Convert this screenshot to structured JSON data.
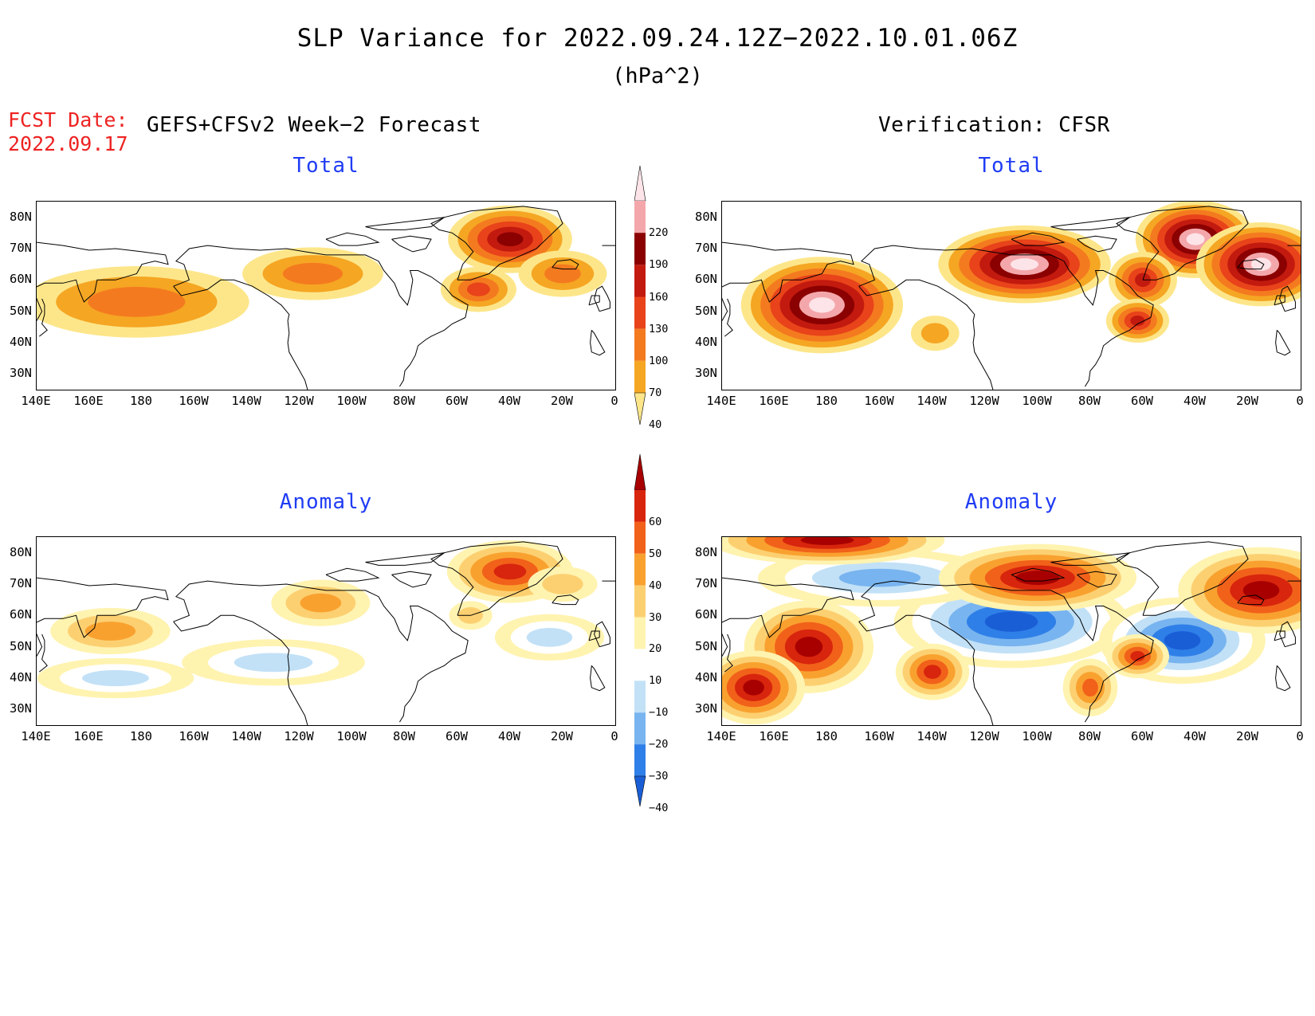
{
  "title": "SLP Variance for 2022.09.24.12Z−2022.10.01.06Z",
  "units": "(hPa^2)",
  "fcst_label": "FCST Date:",
  "fcst_date": "2022.09.17",
  "left_header": "GEFS+CFSv2 Week−2 Forecast",
  "right_header": "Verification: CFSR",
  "panels": {
    "forecast_total": {
      "title": "Total"
    },
    "verify_total": {
      "title": "Total"
    },
    "forecast_anomaly": {
      "title": "Anomaly"
    },
    "verify_anomaly": {
      "title": "Anomaly"
    }
  },
  "lat_labels": [
    "80N",
    "70N",
    "60N",
    "50N",
    "40N",
    "30N"
  ],
  "lon_labels": [
    "140E",
    "160E",
    "180",
    "160W",
    "140W",
    "120W",
    "100W",
    "80W",
    "60W",
    "40W",
    "20W",
    "0"
  ],
  "total_colorbar": {
    "levels": [
      "40",
      "70",
      "100",
      "130",
      "160",
      "190",
      "220"
    ],
    "colors": [
      "#fde68a",
      "#f5a623",
      "#f47a1f",
      "#e8431a",
      "#c31a0f",
      "#8b0000",
      "#f4a7ab",
      "#fce4e8"
    ]
  },
  "anomaly_colorbar": {
    "levels": [
      "−40",
      "−30",
      "−20",
      "−10",
      "10",
      "20",
      "30",
      "40",
      "50",
      "60"
    ],
    "colors": [
      "#1a5ed6",
      "#2f7fe8",
      "#78b4ef",
      "#c2e1f7",
      "#ffffff",
      "#fff3b0",
      "#fcd071",
      "#f9a12f",
      "#f1611a",
      "#d8250d",
      "#a80000"
    ]
  },
  "chart_data": [
    {
      "type": "heatmap",
      "panel": "forecast_total",
      "title": "Total",
      "lon_range": [
        140,
        360
      ],
      "lat_range": [
        25,
        85
      ],
      "blobs": [
        {
          "lon": 178,
          "lat": 53,
          "rlon": 38,
          "rlat": 9,
          "level": 2
        },
        {
          "lon": 245,
          "lat": 62,
          "rlon": 22,
          "rlat": 6,
          "level": 2
        },
        {
          "lon": 320,
          "lat": 73,
          "rlon": 14,
          "rlat": 6,
          "level": 5
        },
        {
          "lon": 308,
          "lat": 57,
          "rlon": 8,
          "rlat": 4,
          "level": 3
        },
        {
          "lon": 340,
          "lat": 62,
          "rlon": 12,
          "rlat": 5,
          "level": 2
        }
      ]
    },
    {
      "type": "heatmap",
      "panel": "verify_total",
      "title": "Total",
      "lon_range": [
        140,
        360
      ],
      "lat_range": [
        25,
        85
      ],
      "blobs": [
        {
          "lon": 178,
          "lat": 52,
          "rlon": 18,
          "rlat": 9,
          "level": 7
        },
        {
          "lon": 255,
          "lat": 65,
          "rlon": 20,
          "rlat": 6,
          "level": 7
        },
        {
          "lon": 320,
          "lat": 73,
          "rlon": 10,
          "rlat": 6,
          "level": 7
        },
        {
          "lon": 345,
          "lat": 65,
          "rlon": 12,
          "rlat": 7,
          "level": 7
        },
        {
          "lon": 221,
          "lat": 43,
          "rlon": 6,
          "rlat": 4,
          "level": 1
        },
        {
          "lon": 300,
          "lat": 60,
          "rlon": 5,
          "rlat": 5,
          "level": 4
        },
        {
          "lon": 298,
          "lat": 47,
          "rlon": 4,
          "rlat": 3,
          "level": 4
        }
      ]
    },
    {
      "type": "heatmap",
      "panel": "forecast_anomaly",
      "title": "Anomaly",
      "lon_range": [
        140,
        360
      ],
      "lat_range": [
        25,
        85
      ],
      "blobs": [
        {
          "lon": 168,
          "lat": 55,
          "rlon": 18,
          "rlat": 5,
          "level": 7
        },
        {
          "lon": 248,
          "lat": 64,
          "rlon": 14,
          "rlat": 5,
          "level": 7
        },
        {
          "lon": 320,
          "lat": 74,
          "rlon": 16,
          "rlat": 6,
          "level": 9
        },
        {
          "lon": 305,
          "lat": 60,
          "rlon": 5,
          "rlat": 3,
          "level": 6
        },
        {
          "lon": 340,
          "lat": 70,
          "rlon": 10,
          "rlat": 4,
          "level": 6
        },
        {
          "lon": 335,
          "lat": 53,
          "rlon": 16,
          "rlat": 5,
          "level": 3
        },
        {
          "lon": 230,
          "lat": 45,
          "rlon": 30,
          "rlat": 5,
          "level": 3
        },
        {
          "lon": 170,
          "lat": 40,
          "rlon": 25,
          "rlat": 4,
          "level": 3
        }
      ]
    },
    {
      "type": "heatmap",
      "panel": "verify_anomaly",
      "title": "Anomaly",
      "lon_range": [
        140,
        360
      ],
      "lat_range": [
        25,
        85
      ],
      "blobs": [
        {
          "lon": 250,
          "lat": 58,
          "rlon": 35,
          "rlat": 10,
          "level": 0
        },
        {
          "lon": 315,
          "lat": 52,
          "rlon": 22,
          "rlat": 9,
          "level": 0
        },
        {
          "lon": 200,
          "lat": 72,
          "rlon": 40,
          "rlat": 6,
          "level": 2
        },
        {
          "lon": 180,
          "lat": 84,
          "rlon": 35,
          "rlat": 3,
          "level": 10
        },
        {
          "lon": 173,
          "lat": 50,
          "rlon": 15,
          "rlat": 10,
          "level": 10
        },
        {
          "lon": 152,
          "lat": 37,
          "rlon": 10,
          "rlat": 7,
          "level": 10
        },
        {
          "lon": 260,
          "lat": 72,
          "rlon": 28,
          "rlat": 6,
          "level": 10
        },
        {
          "lon": 345,
          "lat": 68,
          "rlon": 22,
          "rlat": 9,
          "level": 10
        },
        {
          "lon": 220,
          "lat": 42,
          "rlon": 6,
          "rlat": 5,
          "level": 9
        },
        {
          "lon": 280,
          "lat": 37,
          "rlon": 4,
          "rlat": 6,
          "level": 8
        },
        {
          "lon": 298,
          "lat": 47,
          "rlon": 4,
          "rlat": 3,
          "level": 9
        }
      ]
    }
  ]
}
